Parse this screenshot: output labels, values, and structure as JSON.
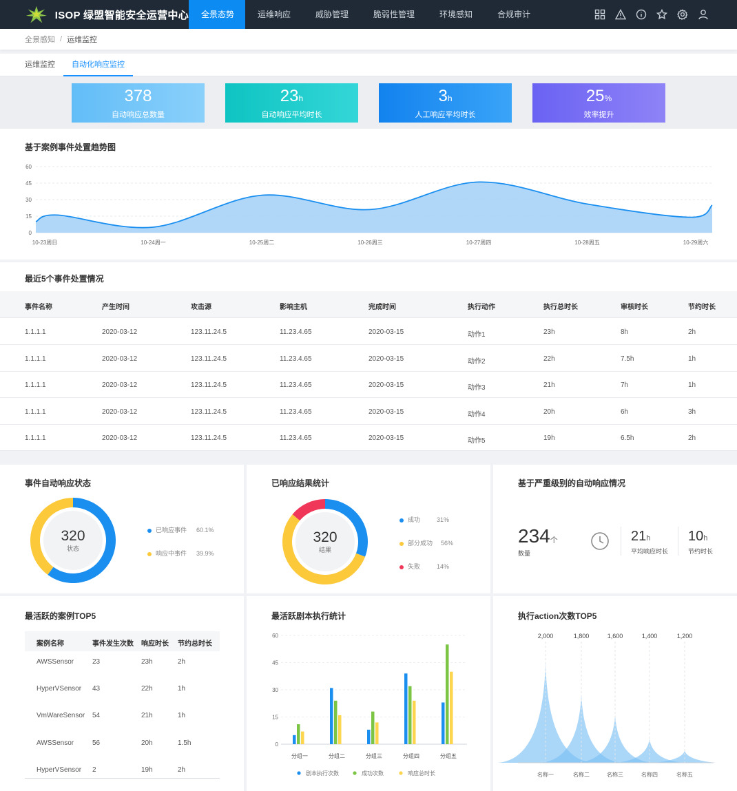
{
  "header": {
    "brand": "ISOP 绿盟智能安全运营中心",
    "nav": [
      "全景态势",
      "运维响应",
      "威胁管理",
      "脆弱性管理",
      "环境感知",
      "合规审计"
    ],
    "icons": [
      "grid-icon",
      "alert-triangle-icon",
      "info-icon",
      "star-icon",
      "settings-icon",
      "user-icon"
    ]
  },
  "breadcrumb": {
    "parent": "全景感知",
    "separator": "/",
    "current": "运维监控"
  },
  "subtabs": [
    "运维监控",
    "自动化响应监控"
  ],
  "kpis": [
    {
      "value": "378",
      "unit": "",
      "label": "自动响应总数量",
      "color": "#6ec4f7"
    },
    {
      "value": "23",
      "unit": "h",
      "label": "自动响应平均时长",
      "color": "#19c8c8"
    },
    {
      "value": "3",
      "unit": "h",
      "label": "人工响应平均时长",
      "color": "#1c8ff0"
    },
    {
      "value": "25",
      "unit": "%",
      "label": "效率提升",
      "color": "#7b6cf5"
    }
  ],
  "trend": {
    "title": "基于案例事件处置趋势图",
    "chart_data": {
      "type": "area",
      "x": [
        "10-23周日",
        "10-24周一",
        "10-25周二",
        "10-26周三",
        "10-27周四",
        "10-28周五",
        "10-29周六"
      ],
      "yticks": [
        0,
        15,
        30,
        45,
        60
      ],
      "ylim": [
        0,
        60
      ],
      "points": [
        {
          "x": 0,
          "y": 10
        },
        {
          "x": 0.12,
          "y": 16
        },
        {
          "x": 1,
          "y": 5
        },
        {
          "x": 2,
          "y": 34
        },
        {
          "x": 3,
          "y": 21
        },
        {
          "x": 4,
          "y": 46
        },
        {
          "x": 5,
          "y": 26
        },
        {
          "x": 5.95,
          "y": 14
        },
        {
          "x": 6.3,
          "y": 25
        }
      ]
    }
  },
  "events": {
    "title": "最近5个事件处置情况",
    "columns": [
      "事件名称",
      "产生时间",
      "攻击源",
      "影响主机",
      "完成时间",
      "执行动作",
      "执行总时长",
      "审核时长",
      "节约时长"
    ],
    "rows": [
      [
        "1.1.1.1",
        "2020-03-12",
        "123.11.24.5",
        "11.23.4.65",
        "2020-03-15",
        "动作1",
        "23h",
        "8h",
        "2h"
      ],
      [
        "1.1.1.1",
        "2020-03-12",
        "123.11.24.5",
        "11.23.4.65",
        "2020-03-15",
        "动作2",
        "22h",
        "7.5h",
        "1h"
      ],
      [
        "1.1.1.1",
        "2020-03-12",
        "123.11.24.5",
        "11.23.4.65",
        "2020-03-15",
        "动作3",
        "21h",
        "7h",
        "1h"
      ],
      [
        "1.1.1.1",
        "2020-03-12",
        "123.11.24.5",
        "11.23.4.65",
        "2020-03-15",
        "动作4",
        "20h",
        "6h",
        "3h"
      ],
      [
        "1.1.1.1",
        "2020-03-12",
        "123.11.24.5",
        "11.23.4.65",
        "2020-03-15",
        "动作5",
        "19h",
        "6.5h",
        "2h"
      ]
    ]
  },
  "status_donut": {
    "title": "事件自动响应状态",
    "center_value": "320",
    "center_label": "状态",
    "chart_data": {
      "type": "pie",
      "slices": [
        {
          "name": "已响应事件",
          "value": 60.1,
          "label": "60.1%",
          "color": "#1a8ff0"
        },
        {
          "name": "响应中事件",
          "value": 39.9,
          "label": "39.9%",
          "color": "#fcc93a"
        }
      ]
    }
  },
  "result_donut": {
    "title": "已响应结果统计",
    "center_value": "320",
    "center_label": "结果",
    "chart_data": {
      "type": "pie",
      "slices": [
        {
          "name": "成功",
          "value": 31,
          "label": "31%",
          "color": "#1a8ff0"
        },
        {
          "name": "部分成功",
          "value": 56,
          "label": "56%",
          "color": "#fcc93a"
        },
        {
          "name": "失败",
          "value": 14,
          "label": "14%",
          "color": "#f0375a"
        }
      ]
    }
  },
  "severity": {
    "title": "基于严重级别的自动响应情况",
    "count": "234",
    "count_unit": "个",
    "count_label": "数量",
    "avg": "21",
    "avg_unit": "h",
    "avg_label": "平均响应时长",
    "saved": "10",
    "saved_unit": "h",
    "saved_label": "节约时长"
  },
  "top_cases": {
    "title": "最活跃的案例TOP5",
    "columns": [
      "案例名称",
      "事件发生次数",
      "响应时长",
      "节约总时长"
    ],
    "rows": [
      [
        "AWSSensor",
        "23",
        "23h",
        "2h"
      ],
      [
        "HyperVSensor",
        "43",
        "22h",
        "1h"
      ],
      [
        "VmWareSensor",
        "54",
        "21h",
        "1h"
      ],
      [
        "AWSSensor",
        "56",
        "20h",
        "1.5h"
      ],
      [
        "HyperVSensor",
        "2",
        "19h",
        "2h"
      ]
    ]
  },
  "playbook": {
    "title": "最活跃剧本执行统计",
    "chart_data": {
      "type": "bar",
      "categories": [
        "分组一",
        "分组二",
        "分组三",
        "分组四",
        "分组五"
      ],
      "ylim": [
        0,
        60
      ],
      "yticks": [
        0,
        15,
        30,
        45,
        60
      ],
      "series": [
        {
          "name": "剧本执行次数",
          "color": "#1a8ff0",
          "values": [
            5,
            31,
            8,
            39,
            23
          ]
        },
        {
          "name": "成功次数",
          "color": "#7cc444",
          "values": [
            11,
            24,
            18,
            32,
            55
          ]
        },
        {
          "name": "响应总时长",
          "color": "#fcd54e",
          "values": [
            7,
            16,
            12,
            24,
            40
          ]
        }
      ]
    }
  },
  "actions": {
    "title": "执行action次数TOP5",
    "chart_data": {
      "type": "area",
      "categories": [
        "名称一",
        "名称二",
        "名称三",
        "名称四",
        "名称五"
      ],
      "values": [
        2000,
        1800,
        1600,
        1400,
        1200
      ],
      "value_labels": [
        "2,000",
        "1,800",
        "1,600",
        "1,400",
        "1,200"
      ],
      "peak_heights": [
        1.0,
        0.69,
        0.48,
        0.24,
        0.12
      ],
      "color": "#7cc0f5"
    }
  }
}
